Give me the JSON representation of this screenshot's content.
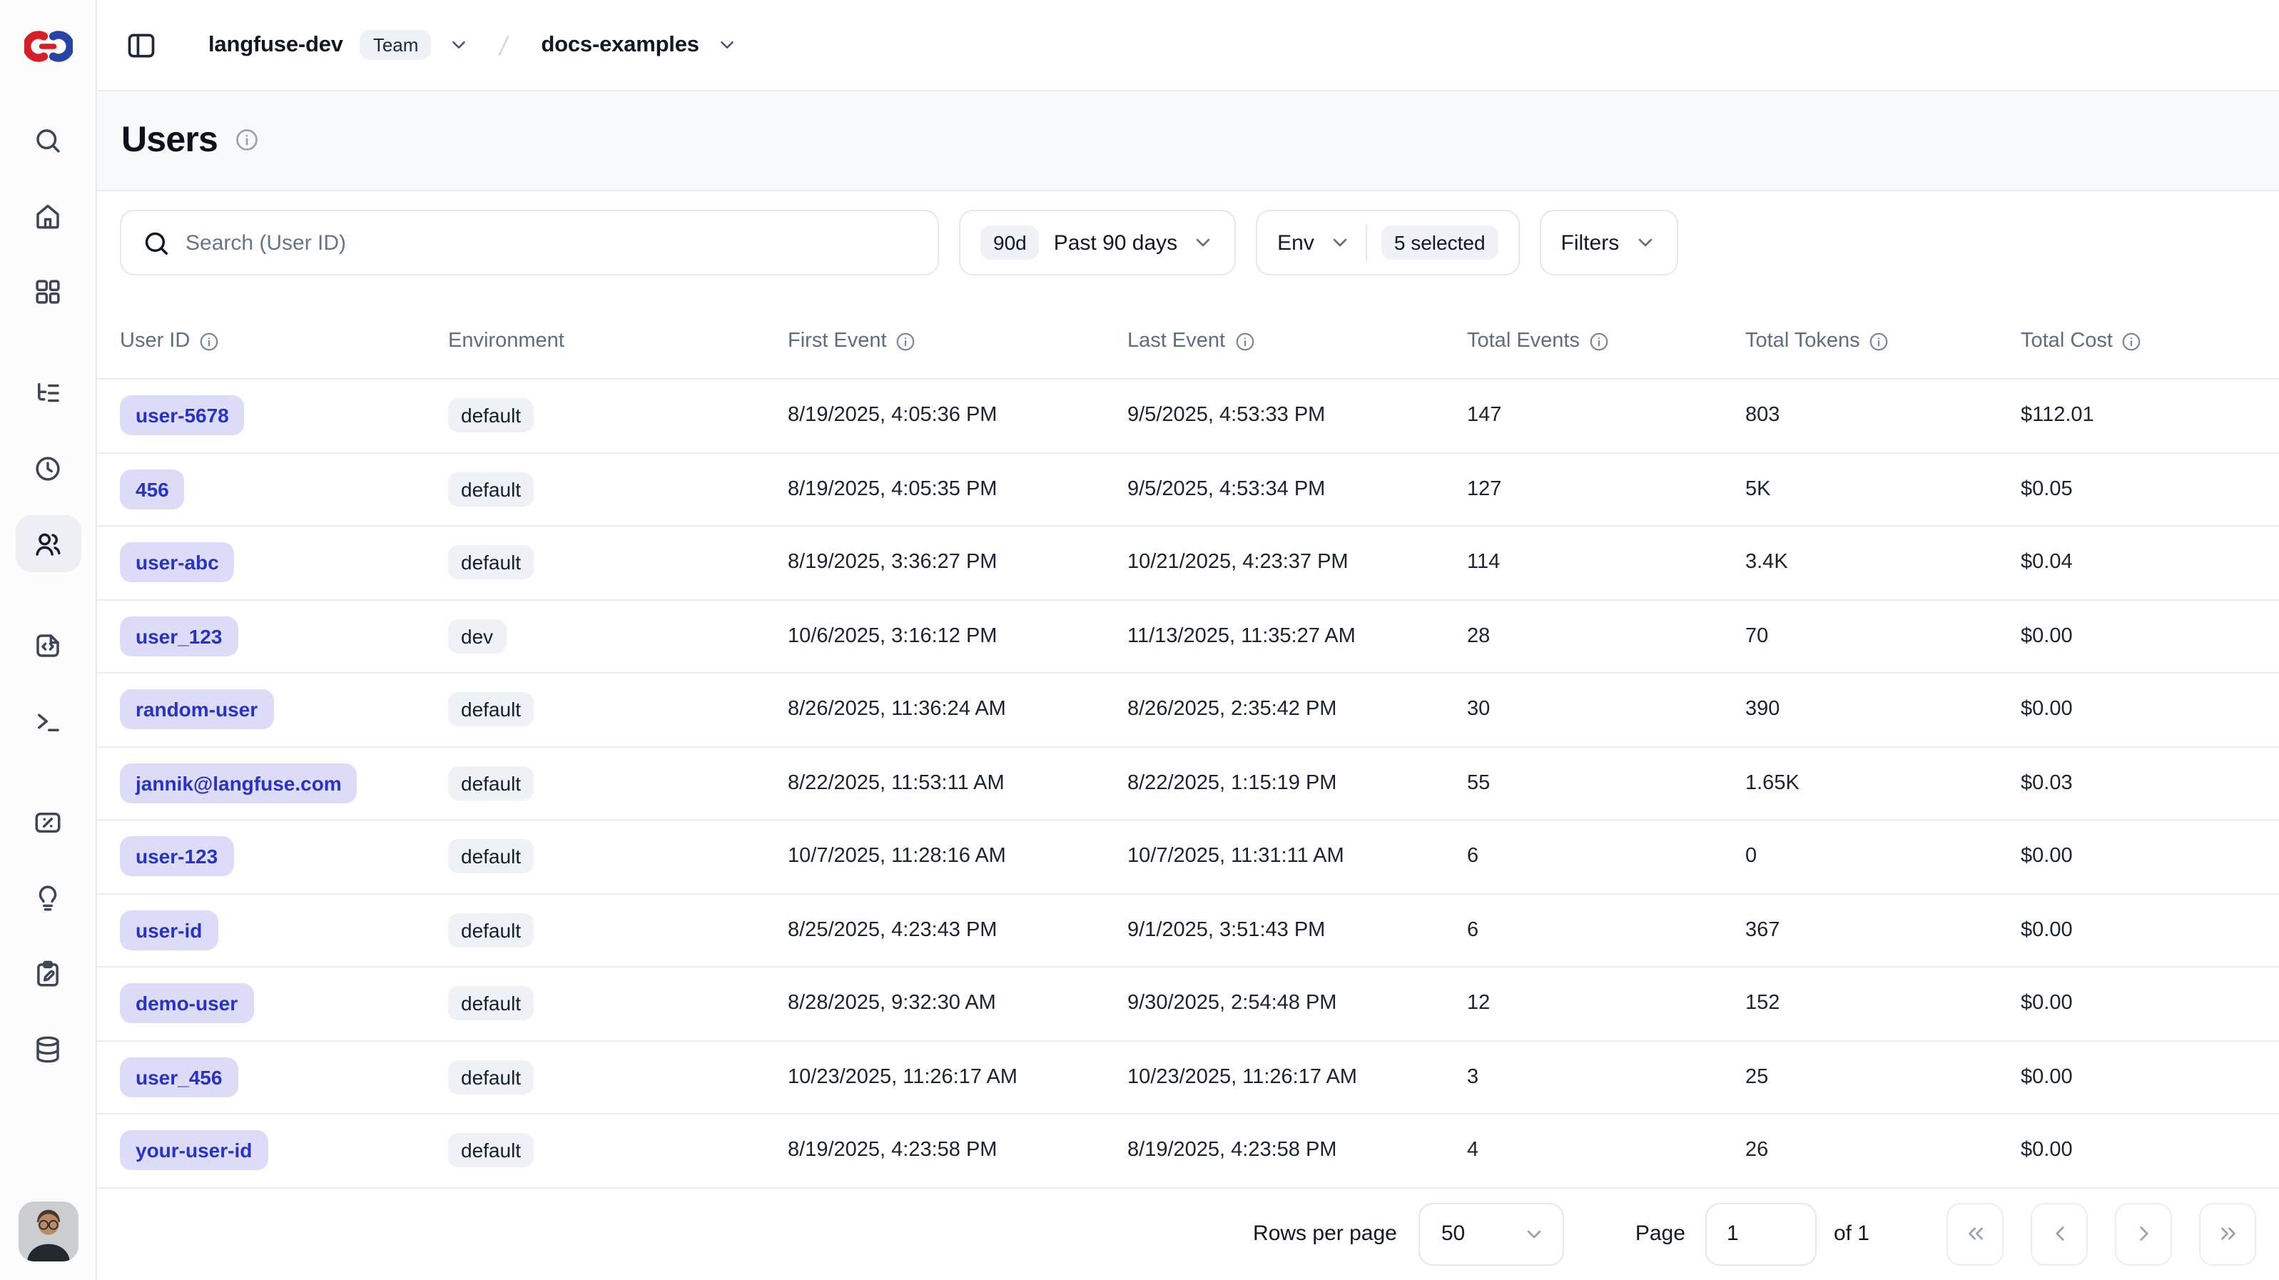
{
  "topbar": {
    "org_name": "langfuse-dev",
    "org_badge": "Team",
    "separator": "/",
    "project_name": "docs-examples"
  },
  "page": {
    "title": "Users"
  },
  "controls": {
    "search_placeholder": "Search (User ID)",
    "date_range": {
      "badge": "90d",
      "label": "Past 90 days"
    },
    "env_filter": {
      "label": "Env",
      "selected_badge": "5 selected"
    },
    "filters_label": "Filters"
  },
  "table": {
    "columns": [
      {
        "label": "User ID",
        "info": true
      },
      {
        "label": "Environment",
        "info": false
      },
      {
        "label": "First Event",
        "info": true
      },
      {
        "label": "Last Event",
        "info": true
      },
      {
        "label": "Total Events",
        "info": true
      },
      {
        "label": "Total Tokens",
        "info": true
      },
      {
        "label": "Total Cost",
        "info": true
      }
    ],
    "rows": [
      {
        "user_id": "user-5678",
        "environment": "default",
        "first_event": "8/19/2025, 4:05:36 PM",
        "last_event": "9/5/2025, 4:53:33 PM",
        "total_events": "147",
        "total_tokens": "803",
        "total_cost": "$112.01"
      },
      {
        "user_id": "456",
        "environment": "default",
        "first_event": "8/19/2025, 4:05:35 PM",
        "last_event": "9/5/2025, 4:53:34 PM",
        "total_events": "127",
        "total_tokens": "5K",
        "total_cost": "$0.05"
      },
      {
        "user_id": "user-abc",
        "environment": "default",
        "first_event": "8/19/2025, 3:36:27 PM",
        "last_event": "10/21/2025, 4:23:37 PM",
        "total_events": "114",
        "total_tokens": "3.4K",
        "total_cost": "$0.04"
      },
      {
        "user_id": "user_123",
        "environment": "dev",
        "first_event": "10/6/2025, 3:16:12 PM",
        "last_event": "11/13/2025, 11:35:27 AM",
        "total_events": "28",
        "total_tokens": "70",
        "total_cost": "$0.00"
      },
      {
        "user_id": "random-user",
        "environment": "default",
        "first_event": "8/26/2025, 11:36:24 AM",
        "last_event": "8/26/2025, 2:35:42 PM",
        "total_events": "30",
        "total_tokens": "390",
        "total_cost": "$0.00"
      },
      {
        "user_id": "jannik@langfuse.com",
        "environment": "default",
        "first_event": "8/22/2025, 11:53:11 AM",
        "last_event": "8/22/2025, 1:15:19 PM",
        "total_events": "55",
        "total_tokens": "1.65K",
        "total_cost": "$0.03"
      },
      {
        "user_id": "user-123",
        "environment": "default",
        "first_event": "10/7/2025, 11:28:16 AM",
        "last_event": "10/7/2025, 11:31:11 AM",
        "total_events": "6",
        "total_tokens": "0",
        "total_cost": "$0.00"
      },
      {
        "user_id": "user-id",
        "environment": "default",
        "first_event": "8/25/2025, 4:23:43 PM",
        "last_event": "9/1/2025, 3:51:43 PM",
        "total_events": "6",
        "total_tokens": "367",
        "total_cost": "$0.00"
      },
      {
        "user_id": "demo-user",
        "environment": "default",
        "first_event": "8/28/2025, 9:32:30 AM",
        "last_event": "9/30/2025, 2:54:48 PM",
        "total_events": "12",
        "total_tokens": "152",
        "total_cost": "$0.00"
      },
      {
        "user_id": "user_456",
        "environment": "default",
        "first_event": "10/23/2025, 11:26:17 AM",
        "last_event": "10/23/2025, 11:26:17 AM",
        "total_events": "3",
        "total_tokens": "25",
        "total_cost": "$0.00"
      },
      {
        "user_id": "your-user-id",
        "environment": "default",
        "first_event": "8/19/2025, 4:23:58 PM",
        "last_event": "8/19/2025, 4:23:58 PM",
        "total_events": "4",
        "total_tokens": "26",
        "total_cost": "$0.00"
      }
    ]
  },
  "pagination": {
    "rows_per_page_label": "Rows per page",
    "rows_per_page_value": "50",
    "page_label": "Page",
    "page_value": "1",
    "of_label": "of 1",
    "nav_icons": [
      "first-page",
      "previous-page",
      "next-page",
      "last-page"
    ]
  },
  "sidebar": {
    "icons": [
      "search",
      "home",
      "dashboard",
      "tracing",
      "sessions",
      "users",
      "prompts",
      "playground",
      "scores",
      "insights",
      "annotation",
      "datasets"
    ],
    "active_icon": "users"
  },
  "colors": {
    "user_badge_bg": "#dcdcf8",
    "user_badge_text": "#2733c5",
    "chip_bg": "#eef2f6",
    "band_bg": "#f7f9fb",
    "border": "#e7eaf0",
    "header_text": "#5d6d84",
    "logo_red": "#d62027",
    "logo_blue": "#2743a6"
  }
}
